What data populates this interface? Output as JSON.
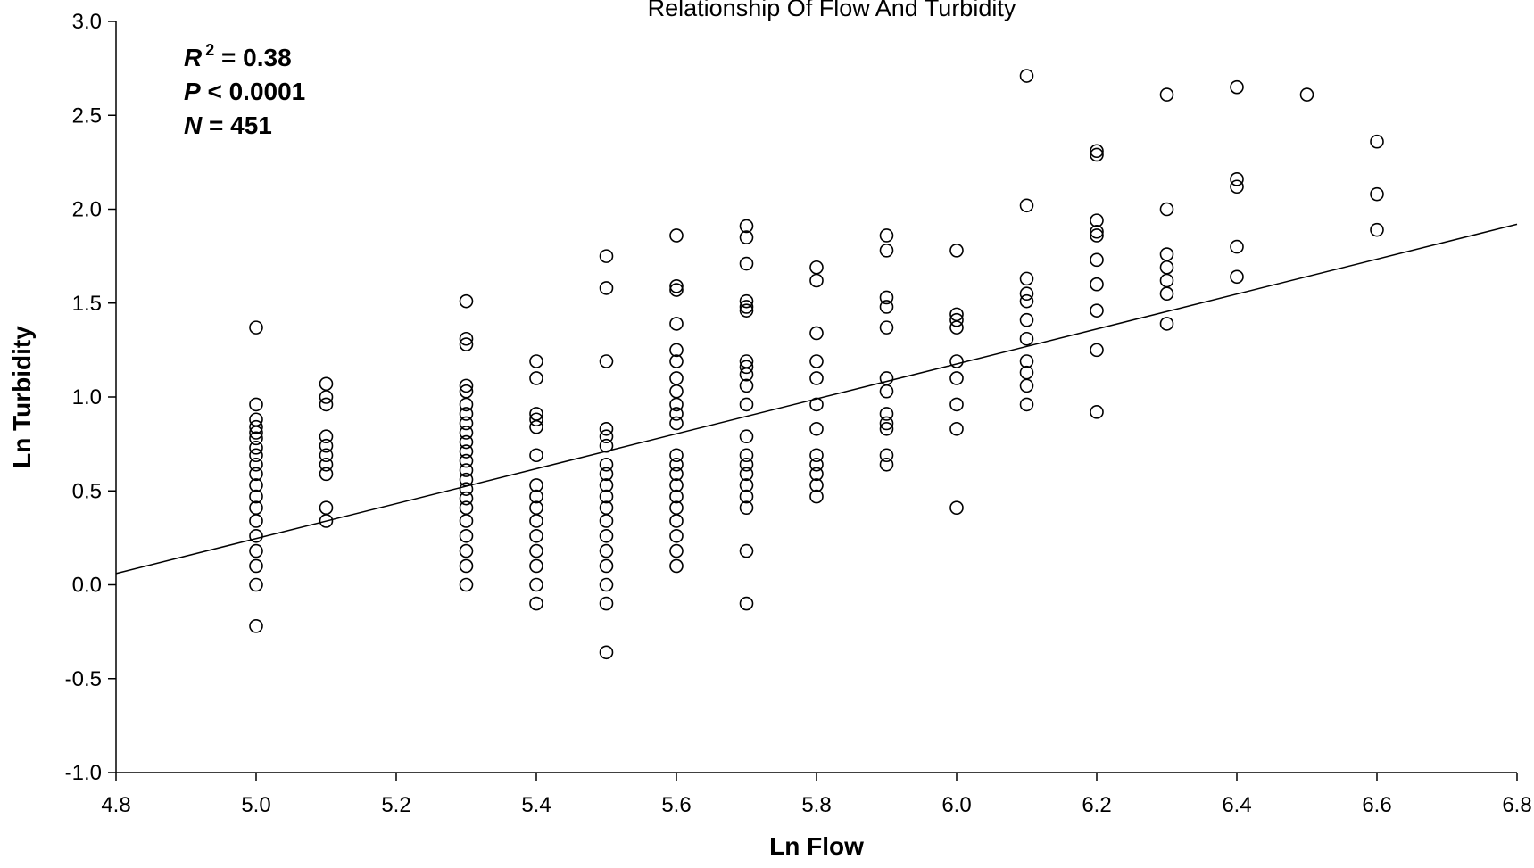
{
  "chart_data": {
    "type": "scatter",
    "title": "Relationship Of Flow And Turbidity",
    "xlabel": "Ln Flow",
    "ylabel": "Ln Turbidity",
    "xlim": [
      4.8,
      6.8
    ],
    "ylim": [
      -1.0,
      3.0
    ],
    "xticks": [
      "4.8",
      "5.0",
      "5.2",
      "5.4",
      "5.6",
      "5.8",
      "6.0",
      "6.2",
      "6.4",
      "6.6",
      "6.8"
    ],
    "yticks": [
      "-1.0",
      "-0.5",
      "0.0",
      "0.5",
      "1.0",
      "1.5",
      "2.0",
      "2.5",
      "3.0"
    ],
    "grid": false,
    "marker": "open-circle",
    "annotations": {
      "r2": {
        "var": "R",
        "sup": "2",
        "text": " = 0.38"
      },
      "p": {
        "var": "P",
        "text": " < 0.0001"
      },
      "n": {
        "var": "N",
        "text": " = 451"
      }
    },
    "regression_line": {
      "x": [
        4.8,
        6.8
      ],
      "y": [
        0.06,
        1.92
      ]
    },
    "points": [
      [
        5.0,
        1.37
      ],
      [
        5.0,
        0.96
      ],
      [
        5.0,
        0.88
      ],
      [
        5.0,
        0.84
      ],
      [
        5.0,
        0.81
      ],
      [
        5.0,
        0.78
      ],
      [
        5.0,
        0.73
      ],
      [
        5.0,
        0.69
      ],
      [
        5.0,
        0.64
      ],
      [
        5.0,
        0.59
      ],
      [
        5.0,
        0.53
      ],
      [
        5.0,
        0.47
      ],
      [
        5.0,
        0.41
      ],
      [
        5.0,
        0.34
      ],
      [
        5.0,
        0.26
      ],
      [
        5.0,
        0.18
      ],
      [
        5.0,
        0.1
      ],
      [
        5.0,
        0.0
      ],
      [
        5.0,
        -0.22
      ],
      [
        5.1,
        1.07
      ],
      [
        5.1,
        1.0
      ],
      [
        5.1,
        0.96
      ],
      [
        5.1,
        0.79
      ],
      [
        5.1,
        0.74
      ],
      [
        5.1,
        0.69
      ],
      [
        5.1,
        0.64
      ],
      [
        5.1,
        0.59
      ],
      [
        5.1,
        0.41
      ],
      [
        5.1,
        0.34
      ],
      [
        5.3,
        1.51
      ],
      [
        5.3,
        1.31
      ],
      [
        5.3,
        1.28
      ],
      [
        5.3,
        1.06
      ],
      [
        5.3,
        1.03
      ],
      [
        5.3,
        0.96
      ],
      [
        5.3,
        0.91
      ],
      [
        5.3,
        0.86
      ],
      [
        5.3,
        0.81
      ],
      [
        5.3,
        0.76
      ],
      [
        5.3,
        0.71
      ],
      [
        5.3,
        0.66
      ],
      [
        5.3,
        0.61
      ],
      [
        5.3,
        0.56
      ],
      [
        5.3,
        0.51
      ],
      [
        5.3,
        0.46
      ],
      [
        5.3,
        0.41
      ],
      [
        5.3,
        0.34
      ],
      [
        5.3,
        0.26
      ],
      [
        5.3,
        0.18
      ],
      [
        5.3,
        0.1
      ],
      [
        5.3,
        0.0
      ],
      [
        5.4,
        1.19
      ],
      [
        5.4,
        1.1
      ],
      [
        5.4,
        0.91
      ],
      [
        5.4,
        0.88
      ],
      [
        5.4,
        0.84
      ],
      [
        5.4,
        0.69
      ],
      [
        5.4,
        0.53
      ],
      [
        5.4,
        0.47
      ],
      [
        5.4,
        0.41
      ],
      [
        5.4,
        0.34
      ],
      [
        5.4,
        0.26
      ],
      [
        5.4,
        0.18
      ],
      [
        5.4,
        0.1
      ],
      [
        5.4,
        0.0
      ],
      [
        5.4,
        -0.1
      ],
      [
        5.5,
        1.75
      ],
      [
        5.5,
        1.58
      ],
      [
        5.5,
        1.19
      ],
      [
        5.5,
        0.83
      ],
      [
        5.5,
        0.79
      ],
      [
        5.5,
        0.74
      ],
      [
        5.5,
        0.64
      ],
      [
        5.5,
        0.59
      ],
      [
        5.5,
        0.53
      ],
      [
        5.5,
        0.47
      ],
      [
        5.5,
        0.41
      ],
      [
        5.5,
        0.34
      ],
      [
        5.5,
        0.26
      ],
      [
        5.5,
        0.18
      ],
      [
        5.5,
        0.1
      ],
      [
        5.5,
        0.0
      ],
      [
        5.5,
        -0.1
      ],
      [
        5.5,
        -0.36
      ],
      [
        5.6,
        1.86
      ],
      [
        5.6,
        1.59
      ],
      [
        5.6,
        1.57
      ],
      [
        5.6,
        1.39
      ],
      [
        5.6,
        1.25
      ],
      [
        5.6,
        1.19
      ],
      [
        5.6,
        1.1
      ],
      [
        5.6,
        1.03
      ],
      [
        5.6,
        0.96
      ],
      [
        5.6,
        0.91
      ],
      [
        5.6,
        0.86
      ],
      [
        5.6,
        0.69
      ],
      [
        5.6,
        0.64
      ],
      [
        5.6,
        0.59
      ],
      [
        5.6,
        0.53
      ],
      [
        5.6,
        0.47
      ],
      [
        5.6,
        0.41
      ],
      [
        5.6,
        0.34
      ],
      [
        5.6,
        0.26
      ],
      [
        5.6,
        0.18
      ],
      [
        5.6,
        0.1
      ],
      [
        5.7,
        1.91
      ],
      [
        5.7,
        1.85
      ],
      [
        5.7,
        1.71
      ],
      [
        5.7,
        1.51
      ],
      [
        5.7,
        1.48
      ],
      [
        5.7,
        1.46
      ],
      [
        5.7,
        1.19
      ],
      [
        5.7,
        1.16
      ],
      [
        5.7,
        1.12
      ],
      [
        5.7,
        1.06
      ],
      [
        5.7,
        0.96
      ],
      [
        5.7,
        0.79
      ],
      [
        5.7,
        0.69
      ],
      [
        5.7,
        0.64
      ],
      [
        5.7,
        0.59
      ],
      [
        5.7,
        0.53
      ],
      [
        5.7,
        0.47
      ],
      [
        5.7,
        0.41
      ],
      [
        5.7,
        0.18
      ],
      [
        5.7,
        -0.1
      ],
      [
        5.8,
        1.69
      ],
      [
        5.8,
        1.62
      ],
      [
        5.8,
        1.34
      ],
      [
        5.8,
        1.19
      ],
      [
        5.8,
        1.1
      ],
      [
        5.8,
        0.96
      ],
      [
        5.8,
        0.83
      ],
      [
        5.8,
        0.69
      ],
      [
        5.8,
        0.64
      ],
      [
        5.8,
        0.59
      ],
      [
        5.8,
        0.53
      ],
      [
        5.8,
        0.47
      ],
      [
        5.9,
        1.86
      ],
      [
        5.9,
        1.78
      ],
      [
        5.9,
        1.53
      ],
      [
        5.9,
        1.48
      ],
      [
        5.9,
        1.37
      ],
      [
        5.9,
        1.1
      ],
      [
        5.9,
        1.03
      ],
      [
        5.9,
        0.91
      ],
      [
        5.9,
        0.86
      ],
      [
        5.9,
        0.83
      ],
      [
        5.9,
        0.69
      ],
      [
        5.9,
        0.64
      ],
      [
        6.0,
        1.78
      ],
      [
        6.0,
        1.44
      ],
      [
        6.0,
        1.41
      ],
      [
        6.0,
        1.37
      ],
      [
        6.0,
        1.19
      ],
      [
        6.0,
        1.1
      ],
      [
        6.0,
        0.96
      ],
      [
        6.0,
        0.83
      ],
      [
        6.0,
        0.41
      ],
      [
        6.1,
        2.71
      ],
      [
        6.1,
        2.02
      ],
      [
        6.1,
        1.63
      ],
      [
        6.1,
        1.55
      ],
      [
        6.1,
        1.51
      ],
      [
        6.1,
        1.41
      ],
      [
        6.1,
        1.31
      ],
      [
        6.1,
        1.19
      ],
      [
        6.1,
        1.13
      ],
      [
        6.1,
        1.06
      ],
      [
        6.1,
        0.96
      ],
      [
        6.2,
        2.31
      ],
      [
        6.2,
        2.29
      ],
      [
        6.2,
        1.94
      ],
      [
        6.2,
        1.88
      ],
      [
        6.2,
        1.86
      ],
      [
        6.2,
        1.73
      ],
      [
        6.2,
        1.6
      ],
      [
        6.2,
        1.46
      ],
      [
        6.2,
        1.25
      ],
      [
        6.2,
        0.92
      ],
      [
        6.3,
        2.61
      ],
      [
        6.3,
        2.0
      ],
      [
        6.3,
        1.76
      ],
      [
        6.3,
        1.69
      ],
      [
        6.3,
        1.62
      ],
      [
        6.3,
        1.55
      ],
      [
        6.3,
        1.39
      ],
      [
        6.4,
        2.65
      ],
      [
        6.4,
        2.16
      ],
      [
        6.4,
        2.12
      ],
      [
        6.4,
        1.8
      ],
      [
        6.4,
        1.64
      ],
      [
        6.5,
        2.61
      ],
      [
        6.6,
        2.36
      ],
      [
        6.6,
        2.08
      ],
      [
        6.6,
        1.89
      ]
    ]
  }
}
